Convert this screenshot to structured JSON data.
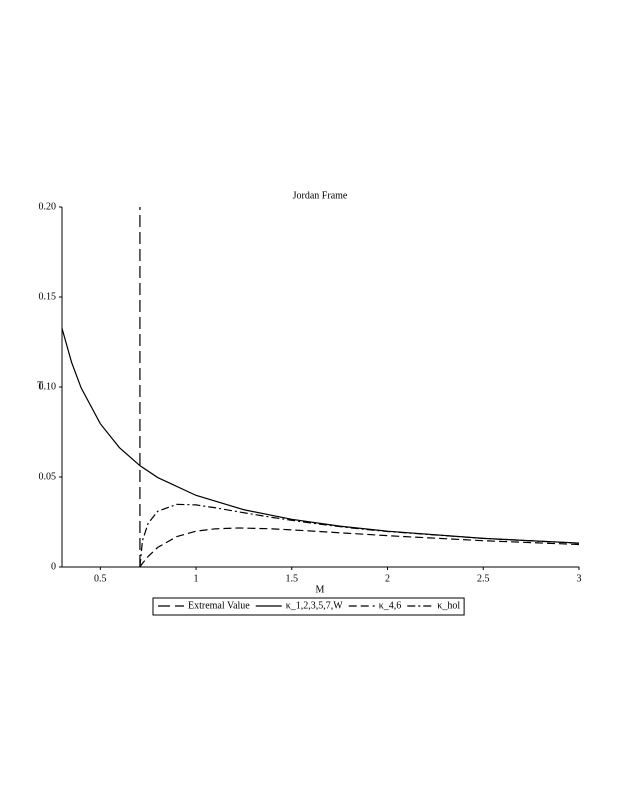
{
  "chart_data": {
    "type": "line",
    "title": "Jordan Frame",
    "xlabel": "M",
    "ylabel": "T",
    "xlim": [
      0.3,
      3
    ],
    "ylim": [
      0,
      0.2
    ],
    "xticks": [
      0.5,
      1,
      1.5,
      2,
      2.5,
      3
    ],
    "yticks": [
      0,
      0.05,
      {
        "value": 0.1,
        "label": "0.10"
      },
      0.15,
      {
        "value": 0.2,
        "label": "0.20"
      }
    ],
    "series": [
      {
        "name": "Extremal Value",
        "color": "#000000",
        "style": "longdash",
        "x": [
          0.707,
          0.707
        ],
        "values": [
          0,
          0.2
        ]
      },
      {
        "name": "κ_1,2,3,5,7,W",
        "color": "#000000",
        "style": "solid",
        "x": [
          0.3,
          0.35,
          0.4,
          0.5,
          0.6,
          0.707,
          0.8,
          1,
          1.25,
          1.5,
          1.75,
          2,
          2.5,
          3
        ],
        "values": [
          0.1326,
          0.1137,
          0.0995,
          0.0796,
          0.0663,
          0.0563,
          0.0497,
          0.0398,
          0.0318,
          0.0265,
          0.0227,
          0.0199,
          0.0159,
          0.0133
        ]
      },
      {
        "name": "κ_4,6",
        "color": "#000000",
        "style": "dash",
        "x": [
          0.707,
          0.72,
          0.75,
          0.8,
          0.9,
          1,
          1.1,
          1.225,
          1.4,
          1.6,
          1.8,
          2,
          2.5,
          3
        ],
        "values": [
          0,
          0.002,
          0.0059,
          0.0109,
          0.0169,
          0.0199,
          0.0212,
          0.0217,
          0.0212,
          0.02,
          0.0187,
          0.0174,
          0.0146,
          0.0125
        ]
      },
      {
        "name": "κ_hol",
        "color": "#000000",
        "style": "dashdot",
        "x": [
          0.707,
          0.72,
          0.75,
          0.8,
          0.9,
          1,
          1.1,
          1.225,
          1.4,
          1.6,
          1.8,
          2,
          2.5,
          3
        ],
        "values": [
          0,
          0.0146,
          0.0243,
          0.031,
          0.0348,
          0.0345,
          0.0329,
          0.0306,
          0.0275,
          0.0244,
          0.0218,
          0.0197,
          0.0159,
          0.0132
        ]
      }
    ]
  }
}
